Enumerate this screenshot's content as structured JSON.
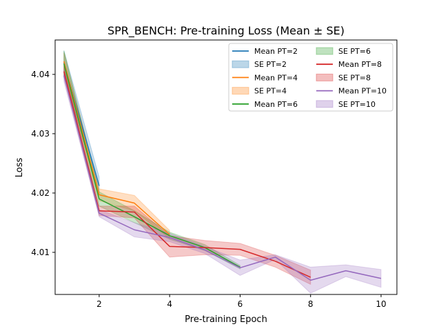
{
  "chart_data": {
    "type": "line",
    "title": "SPR_BENCH: Pre-training Loss (Mean ± SE)",
    "xlabel": "Pre-training Epoch",
    "ylabel": "Loss",
    "xlim": [
      0.75,
      10.45
    ],
    "ylim": [
      4.0029,
      4.0458
    ],
    "xticks": [
      2,
      4,
      6,
      8,
      10
    ],
    "yticks": [
      4.01,
      4.02,
      4.03,
      4.04
    ],
    "ytick_labels": [
      "4.01",
      "4.02",
      "4.03",
      "4.04"
    ],
    "grid": false,
    "legend_position": "top-right",
    "legend_columns": 2,
    "series": [
      {
        "name": "Mean PT=2",
        "se_name": "SE PT=2",
        "color": "#1f77b4",
        "x": [
          1,
          2
        ],
        "mean": [
          4.042,
          4.0212
        ],
        "se": [
          0.002,
          0.0015
        ]
      },
      {
        "name": "Mean PT=4",
        "se_name": "SE PT=4",
        "color": "#ff7f0e",
        "x": [
          1,
          2,
          3,
          4
        ],
        "mean": [
          4.0422,
          4.0197,
          4.0183,
          4.013
        ],
        "se": [
          0.0015,
          0.001,
          0.0013,
          0.0007
        ]
      },
      {
        "name": "Mean PT=6",
        "se_name": "SE PT=6",
        "color": "#2ca02c",
        "x": [
          1,
          2,
          3,
          4,
          5,
          6
        ],
        "mean": [
          4.0418,
          4.019,
          4.016,
          4.0128,
          4.0108,
          4.0075
        ],
        "se": [
          0.0022,
          0.0012,
          0.001,
          0.0006,
          0.0005,
          0.0003
        ]
      },
      {
        "name": "Mean PT=8",
        "se_name": "SE PT=8",
        "color": "#d62728",
        "x": [
          1,
          2,
          3,
          4,
          5,
          6,
          7,
          8
        ],
        "mean": [
          4.0405,
          4.017,
          4.0168,
          4.011,
          4.0108,
          4.0105,
          4.0085,
          4.0058
        ],
        "se": [
          0.001,
          0.0008,
          0.001,
          0.0018,
          0.0012,
          0.001,
          0.001,
          0.0012
        ]
      },
      {
        "name": "Mean PT=10",
        "se_name": "SE PT=10",
        "color": "#9467bd",
        "x": [
          1,
          2,
          3,
          4,
          5,
          6,
          7,
          8,
          9,
          10
        ],
        "mean": [
          4.0398,
          4.0166,
          4.0138,
          4.0125,
          4.0104,
          4.0074,
          4.0092,
          4.0053,
          4.0069,
          4.0056
        ],
        "se": [
          0.001,
          0.0006,
          0.0012,
          0.0007,
          0.0006,
          0.0013,
          0.0004,
          0.0022,
          0.001,
          0.0015
        ]
      }
    ]
  }
}
